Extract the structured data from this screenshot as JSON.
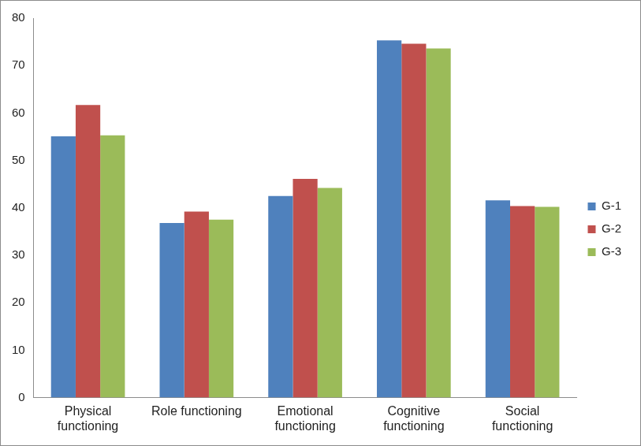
{
  "chart_data": {
    "type": "bar",
    "categories": [
      "Physical functioning",
      "Role functioning",
      "Emotional functioning",
      "Cognitive functioning",
      "Social functioning"
    ],
    "series": [
      {
        "name": "G-1",
        "color": "#4f81bd",
        "values": [
          55.1,
          36.8,
          42.5,
          75.3,
          41.6
        ]
      },
      {
        "name": "G-2",
        "color": "#c0504d",
        "values": [
          61.7,
          39.2,
          46.1,
          74.6,
          40.4
        ]
      },
      {
        "name": "G-3",
        "color": "#9bbb59",
        "values": [
          55.3,
          37.5,
          44.2,
          73.6,
          40.2
        ]
      }
    ],
    "ylim": [
      0,
      80
    ],
    "yticks": [
      0,
      10,
      20,
      30,
      40,
      50,
      60,
      70,
      80
    ],
    "grid": false,
    "legend": "right"
  }
}
